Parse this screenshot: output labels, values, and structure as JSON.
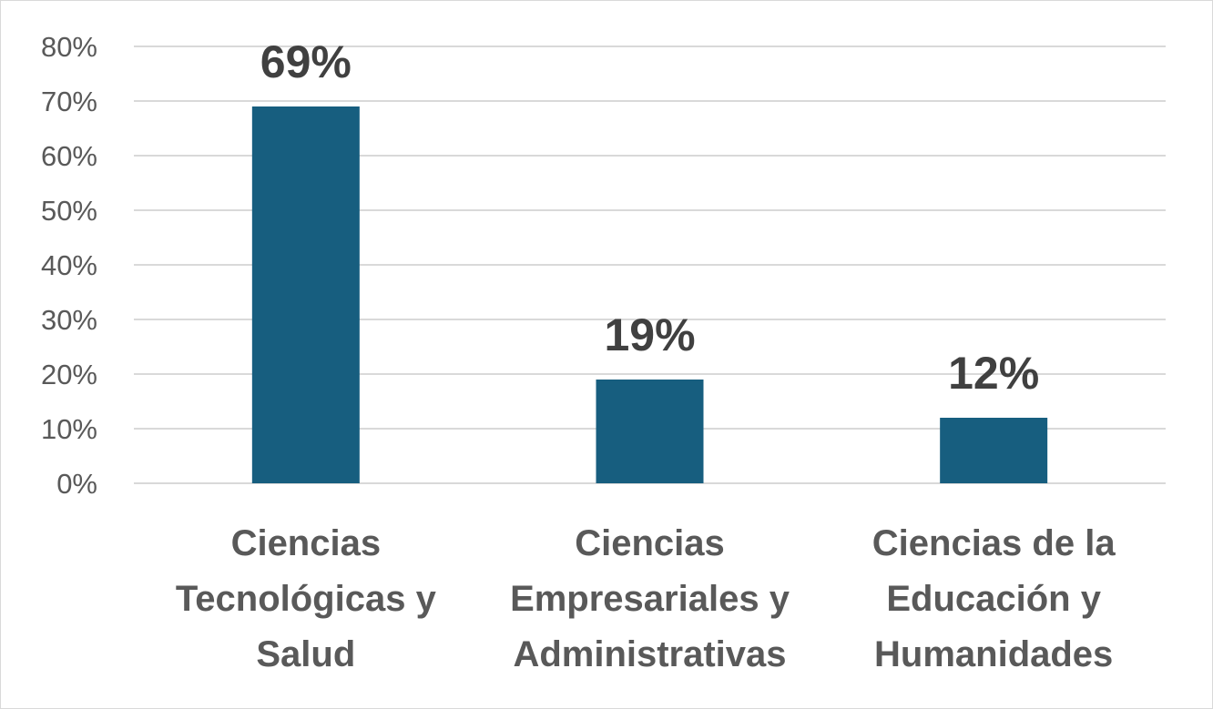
{
  "chart_data": {
    "type": "bar",
    "title": "",
    "xlabel": "",
    "ylabel": "",
    "categories": [
      [
        "Ciencias",
        "Tecnológicas y",
        "Salud"
      ],
      [
        "Ciencias",
        "Empresariales y",
        "Administrativas"
      ],
      [
        "Ciencias de la",
        "Educación y",
        "Humanidades"
      ]
    ],
    "values": [
      69,
      19,
      12
    ],
    "data_labels": [
      "69%",
      "19%",
      "12%"
    ],
    "ylim": [
      0,
      80
    ],
    "yticks": [
      0,
      10,
      20,
      30,
      40,
      50,
      60,
      70,
      80
    ],
    "ytick_labels": [
      "0%",
      "10%",
      "20%",
      "30%",
      "40%",
      "50%",
      "60%",
      "70%",
      "80%"
    ],
    "grid": true,
    "legend": "none",
    "bar_color": "#175E7F"
  }
}
